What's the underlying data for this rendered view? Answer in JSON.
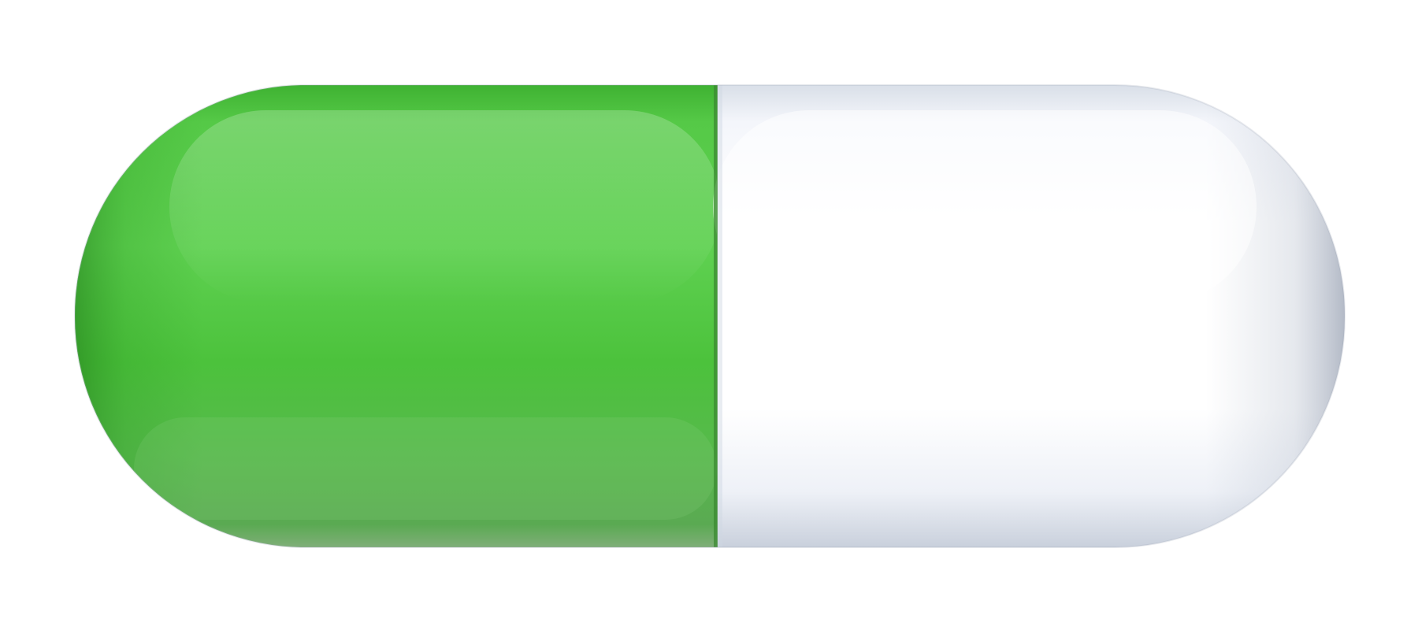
{
  "image": {
    "subject": "capsule-pill",
    "background_color": "#ffffff",
    "colors": {
      "left_half": "#4cc23c",
      "left_half_highlight": "#63d256",
      "left_half_shadow": "#2f9a25",
      "right_half": "#ffffff",
      "right_half_shadow": "#c9d0dc",
      "seam": "#3b8a32"
    }
  }
}
